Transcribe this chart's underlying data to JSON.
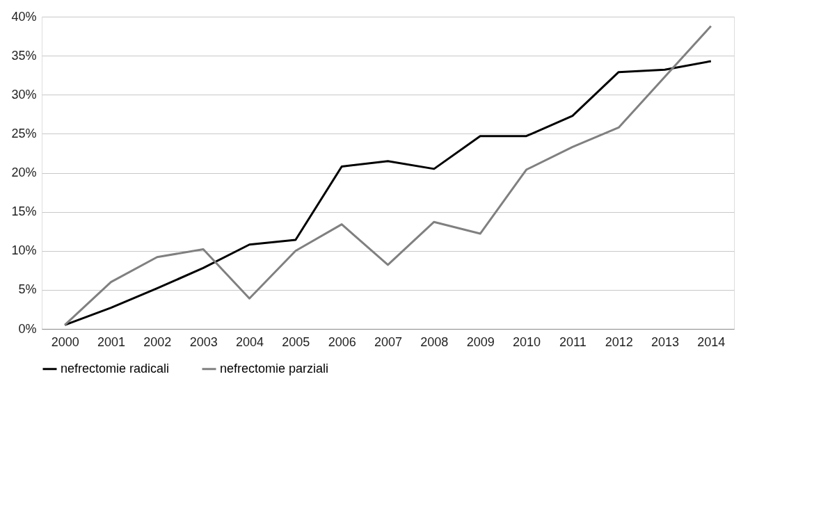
{
  "chart_data": {
    "type": "line",
    "categories": [
      "2000",
      "2001",
      "2002",
      "2003",
      "2004",
      "2005",
      "2006",
      "2007",
      "2008",
      "2009",
      "2010",
      "2011",
      "2012",
      "2013",
      "2014"
    ],
    "series": [
      {
        "name": "nefrectomie radicali",
        "color": "#000000",
        "values": [
          0.5,
          2.7,
          5.2,
          7.8,
          10.8,
          11.4,
          20.8,
          21.5,
          20.5,
          24.7,
          24.7,
          27.3,
          32.9,
          33.2,
          34.3
        ]
      },
      {
        "name": "nefrectomie parziali",
        "color": "#808080",
        "values": [
          0.5,
          6.0,
          9.2,
          10.2,
          3.9,
          10.0,
          13.4,
          8.2,
          13.7,
          12.2,
          20.4,
          23.3,
          25.8,
          32.3,
          38.8
        ]
      }
    ],
    "ylim": [
      0,
      40
    ],
    "yticks": [
      {
        "value": 0,
        "label": "0%"
      },
      {
        "value": 5,
        "label": "5%"
      },
      {
        "value": 10,
        "label": "10%"
      },
      {
        "value": 15,
        "label": "15%"
      },
      {
        "value": 20,
        "label": "20%"
      },
      {
        "value": 25,
        "label": "25%"
      },
      {
        "value": 30,
        "label": "30%"
      },
      {
        "value": 35,
        "label": "35%"
      },
      {
        "value": 40,
        "label": "40%"
      }
    ],
    "grid": "y",
    "legend": "bottom",
    "marker": "none",
    "line_style": "solid"
  }
}
